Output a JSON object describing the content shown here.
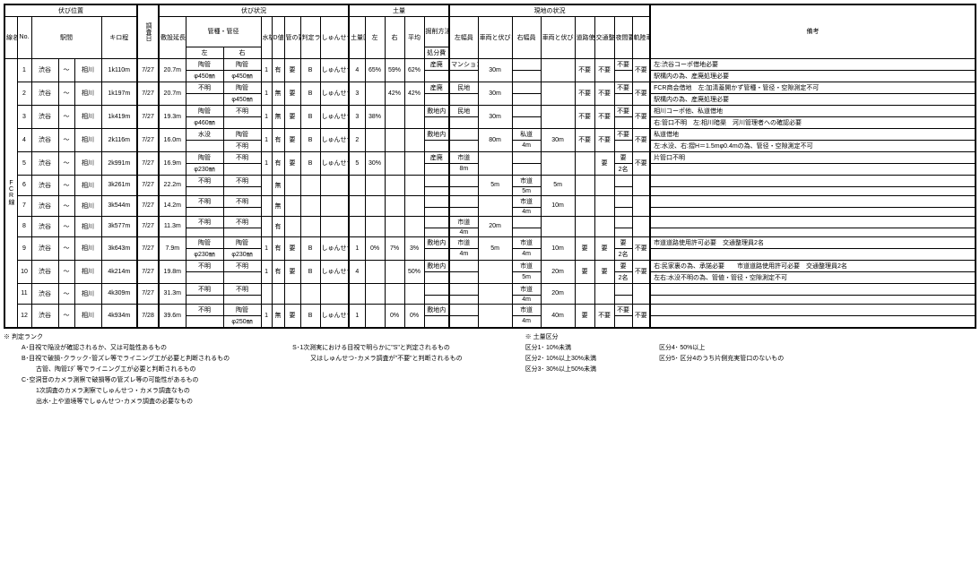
{
  "headers": {
    "pos_group": "伏び位置",
    "survey_date": "調査日",
    "status_group": "伏び状況",
    "soil_group": "土量",
    "site_group": "現地の状況",
    "remarks": "備考",
    "line": "線名",
    "no": "No.",
    "station": "駅間",
    "kilo": "キロ程",
    "length": "敷設延長",
    "pipe_group": "管種・管径",
    "left": "左",
    "right": "右",
    "water": "水枯",
    "d": "D値",
    "pipe_ok": "管の要否",
    "rank": "判定ランク",
    "cam": "しゅんせつ・カメラ調査",
    "soil_class": "土量区分",
    "avg": "平均",
    "soil_method": "掘削方法",
    "l_width": "左幅員",
    "l_dist": "車両と伏びまでの距離",
    "r_width": "右幅員",
    "r_dist": "車両と伏びまでの距離",
    "road_permit": "道路使用許可",
    "traffic": "交通整理員",
    "night": "夜間要否",
    "track": "軌陸車要否"
  },
  "line_name": "FCR線",
  "soil_sub": "処分費",
  "rows": [
    {
      "no": "1",
      "s1": "渋谷",
      "s2": "相川",
      "kilo": "1k110m",
      "date": "7/27",
      "len": "20.7m",
      "pl1": "陶管",
      "pl2": "φ450㎜",
      "pr1": "陶管",
      "pr2": "φ450㎜",
      "wk": "1",
      "d": "有",
      "ok": "要",
      "rk": "B",
      "cam": "しゅんせつ・カメラ",
      "sc": "4",
      "sl": "65%",
      "sr": "59%",
      "sv": "62%",
      "sm1": "産廃",
      "sm2": "",
      "lw1": "マンション",
      "lw2": "",
      "ld": "30m",
      "rw1": "",
      "rw2": "",
      "rd": "",
      "rp": "不要",
      "tr": "不要",
      "ni": "不要",
      "tk": "不要",
      "rm1": "左:渋谷コーポ借地必要",
      "rm2": "駅構内の為、産廃処理必要"
    },
    {
      "no": "2",
      "s1": "渋谷",
      "s2": "相川",
      "kilo": "1k197m",
      "date": "7/27",
      "len": "20.7m",
      "pl1": "不明",
      "pl2": "",
      "pr1": "陶管",
      "pr2": "φ450㎜",
      "wk": "1",
      "d": "無",
      "ok": "要",
      "rk": "B",
      "cam": "しゅんせつ・カメラ",
      "sc": "3",
      "sl": "",
      "sr": "42%",
      "sv": "42%",
      "sm1": "産廃",
      "sm2": "",
      "lw1": "民地",
      "lw2": "",
      "ld": "30m",
      "rw1": "",
      "rw2": "",
      "rd": "",
      "rp": "不要",
      "tr": "不要",
      "ni": "不要",
      "tk": "不要",
      "rm1": "FCR商会借地　左:加清蓋開かず管種・管径・空隙測定不可",
      "rm2": "駅構内の為、産廃処理必要"
    },
    {
      "no": "3",
      "s1": "渋谷",
      "s2": "相川",
      "kilo": "1k419m",
      "date": "7/27",
      "len": "19.3m",
      "pl1": "陶管",
      "pl2": "φ460㎜",
      "pr1": "不明",
      "pr2": "",
      "wk": "1",
      "d": "無",
      "ok": "要",
      "rk": "B",
      "cam": "しゅんせつ・カメラ",
      "sc": "3",
      "sl": "38%",
      "sr": "",
      "sv": "",
      "sm1": "敷地内",
      "sm2": "",
      "lw1": "民地",
      "lw2": "",
      "ld": "30m",
      "rw1": "",
      "rw2": "",
      "rd": "",
      "rp": "不要",
      "tr": "不要",
      "ni": "不要",
      "tk": "不要",
      "rm1": "相川コーポ他、私道借地",
      "rm2": "右:管口不明　左:相川暗渠　河川管理者への確認必要"
    },
    {
      "no": "4",
      "s1": "渋谷",
      "s2": "相川",
      "kilo": "2k116m",
      "date": "7/27",
      "len": "16.0m",
      "pl1": "水没",
      "pl2": "",
      "pr1": "陶管",
      "pr2": "不明",
      "wk": "1",
      "d": "有",
      "ok": "要",
      "rk": "B",
      "cam": "しゅんせつ・カメラ",
      "sc": "2",
      "sl": "",
      "sr": "",
      "sv": "",
      "sm1": "敷地内",
      "sm2": "",
      "lw1": "",
      "lw2": "",
      "ld": "80m",
      "rw1": "私道",
      "rw2": "4m",
      "rd": "30m",
      "rp": "不要",
      "tr": "不要",
      "ni": "不要",
      "tk": "不要",
      "rm1": "私道借地",
      "rm2": "左:水没、右:摺H＝1.5mφ0.4mの為、管径・空隙測定不可"
    },
    {
      "no": "5",
      "s1": "渋谷",
      "s2": "相川",
      "kilo": "2k991m",
      "date": "7/27",
      "len": "16.9m",
      "pl1": "陶管",
      "pl2": "φ230㎜",
      "pr1": "不明",
      "pr2": "",
      "wk": "1",
      "d": "有",
      "ok": "要",
      "rk": "B",
      "cam": "しゅんせつ・カメラ",
      "sc": "5",
      "sl": "30%",
      "sr": "",
      "sv": "",
      "sm1": "産廃",
      "sm2": "",
      "lw1": "市道",
      "lw2": "8m",
      "ld": "",
      "rw1": "",
      "rw2": "",
      "rd": "",
      "rp": "",
      "tr": "要",
      "ni": "要",
      "nis": "2名",
      "tk": "不要",
      "rm1": "片管口不明",
      "rm2": ""
    },
    {
      "no": "6",
      "s1": "渋谷",
      "s2": "相川",
      "kilo": "3k261m",
      "date": "7/27",
      "len": "22.2m",
      "pl1": "不明",
      "pl2": "",
      "pr1": "不明",
      "pr2": "",
      "wk": "",
      "d": "無",
      "ok": "",
      "rk": "",
      "cam": "",
      "sc": "",
      "sl": "",
      "sr": "",
      "sv": "",
      "sm1": "",
      "sm2": "",
      "lw1": "",
      "lw2": "",
      "ld": "5m",
      "rw1": "市道",
      "rw2": "5m",
      "rd": "5m",
      "rp": "",
      "tr": "",
      "ni": "",
      "tk": "",
      "rm1": "",
      "rm2": ""
    },
    {
      "no": "7",
      "s1": "渋谷",
      "s2": "相川",
      "kilo": "3k544m",
      "date": "7/27",
      "len": "14.2m",
      "pl1": "不明",
      "pl2": "",
      "pr1": "不明",
      "pr2": "",
      "wk": "",
      "d": "無",
      "ok": "",
      "rk": "",
      "cam": "",
      "sc": "",
      "sl": "",
      "sr": "",
      "sv": "",
      "sm1": "",
      "sm2": "",
      "lw1": "",
      "lw2": "",
      "ld": "",
      "rw1": "市道",
      "rw2": "4m",
      "rd": "10m",
      "rp": "",
      "tr": "",
      "ni": "",
      "tk": "",
      "rm1": "",
      "rm2": ""
    },
    {
      "no": "8",
      "s1": "渋谷",
      "s2": "相川",
      "kilo": "3k577m",
      "date": "7/27",
      "len": "11.3m",
      "pl1": "不明",
      "pl2": "",
      "pr1": "不明",
      "pr2": "",
      "wk": "",
      "d": "有",
      "ok": "",
      "rk": "",
      "cam": "",
      "sc": "",
      "sl": "",
      "sr": "",
      "sv": "",
      "sm1": "",
      "sm2": "",
      "lw1": "市道",
      "lw2": "4m",
      "ld": "20m",
      "rw1": "",
      "rw2": "",
      "rd": "",
      "rp": "",
      "tr": "",
      "ni": "",
      "tk": "",
      "rm1": "",
      "rm2": ""
    },
    {
      "no": "9",
      "s1": "渋谷",
      "s2": "相川",
      "kilo": "3k643m",
      "date": "7/27",
      "len": "7.9m",
      "pl1": "陶管",
      "pl2": "φ230㎜",
      "pr1": "陶管",
      "pr2": "φ230㎜",
      "wk": "1",
      "d": "有",
      "ok": "要",
      "rk": "B",
      "cam": "しゅんせつ・カメラ",
      "sc": "1",
      "sl": "0%",
      "sr": "7%",
      "sv": "3%",
      "sm1": "敷地内",
      "sm2": "",
      "lw1": "市道",
      "lw2": "4m",
      "ld": "5m",
      "rw1": "市道",
      "rw2": "4m",
      "rd": "10m",
      "rp": "要",
      "tr": "要",
      "ni": "要",
      "nis": "2名",
      "tk": "不要",
      "rm1": "市道道路使用許可必要　交通整理員2名",
      "rm2": ""
    },
    {
      "no": "10",
      "s1": "渋谷",
      "s2": "相川",
      "kilo": "4k214m",
      "date": "7/27",
      "len": "19.8m",
      "pl1": "不明",
      "pl2": "",
      "pr1": "不明",
      "pr2": "",
      "wk": "1",
      "d": "有",
      "ok": "要",
      "rk": "B",
      "cam": "しゅんせつ・カメラ",
      "sc": "4",
      "sl": "",
      "sr": "",
      "sv": "50%",
      "sm1": "敷地内",
      "sm2": "",
      "lw1": "",
      "lw2": "",
      "ld": "",
      "rw1": "市道",
      "rw2": "5m",
      "rd": "20m",
      "rp": "要",
      "tr": "要",
      "ni": "要",
      "nis": "2名",
      "tk": "不要",
      "rm1": "右:民家裏の為、承諾必要　　市道道路使用許可必要　交通整理員2名",
      "rm2": "左右:水没不明の為、管値・管径・空隙測定不可"
    },
    {
      "no": "11",
      "s1": "渋谷",
      "s2": "相川",
      "kilo": "4k309m",
      "date": "7/27",
      "len": "31.3m",
      "pl1": "不明",
      "pl2": "",
      "pr1": "不明",
      "pr2": "",
      "wk": "",
      "d": "",
      "ok": "",
      "rk": "",
      "cam": "",
      "sc": "",
      "sl": "",
      "sr": "",
      "sv": "",
      "sm1": "",
      "sm2": "",
      "lw1": "",
      "lw2": "",
      "ld": "",
      "rw1": "市道",
      "rw2": "4m",
      "rd": "20m",
      "rp": "",
      "tr": "",
      "ni": "",
      "tk": "",
      "rm1": "",
      "rm2": ""
    },
    {
      "no": "12",
      "s1": "渋谷",
      "s2": "相川",
      "kilo": "4k934m",
      "date": "7/28",
      "len": "39.6m",
      "pl1": "不明",
      "pl2": "",
      "pr1": "陶管",
      "pr2": "φ250㎜",
      "wk": "1",
      "d": "無",
      "ok": "要",
      "rk": "B",
      "cam": "しゅんせつ・カメラ",
      "sc": "1",
      "sl": "",
      "sr": "0%",
      "sv": "0%",
      "sm1": "敷地内",
      "sm2": "",
      "lw1": "",
      "lw2": "",
      "ld": "",
      "rw1": "市道",
      "rw2": "4m",
      "rd": "40m",
      "rp": "要",
      "tr": "不要",
      "ni": "不要",
      "tk": "不要",
      "rm1": "",
      "rm2": ""
    }
  ],
  "legend": {
    "title1": "※  判定ランク",
    "title2": "※ 土量区分",
    "col1": [
      {
        "l": 1,
        "t": "A･目視で陥没が確認されるか、又は可能性あるもの"
      },
      {
        "l": 1,
        "t": "B･目視で破損･クラック･管ズレ等でライニング工が必要と判断されるもの"
      },
      {
        "l": 2,
        "t": "古管、陶管ｴﾀﾞ等でライニング工が必要と判断されるもの"
      },
      {
        "l": 1,
        "t": "C･空洞音のカメラ測察で破損等の管ズレ等の可能性があるもの"
      },
      {
        "l": 2,
        "t": "1次調査のカメラ測察でしゅんせつ・カメラ調査なもの"
      },
      {
        "l": 2,
        "t": "出水･上や道境等でしゅんせつ･カメラ調査の必要なもの"
      }
    ],
    "col1b": [
      {
        "l": 0,
        "t": "S･1次測実における目視で明らかに\"S\"と判定されるもの"
      },
      {
        "l": 1,
        "t": "又はしゅんせつ･カメラ調査が\"不要\"と判断されるもの"
      }
    ],
    "col2": [
      {
        "l": 0,
        "t": "区分1･ 10%未満"
      },
      {
        "l": 0,
        "t": "区分2･ 10%以上30%未満"
      },
      {
        "l": 0,
        "t": "区分3･ 30%以上50%未満"
      }
    ],
    "col3": [
      {
        "l": 0,
        "t": "区分4･ 50%以上"
      },
      {
        "l": 0,
        "t": "区分5･ 区分4のうち片側充実管口のないもの"
      }
    ]
  }
}
